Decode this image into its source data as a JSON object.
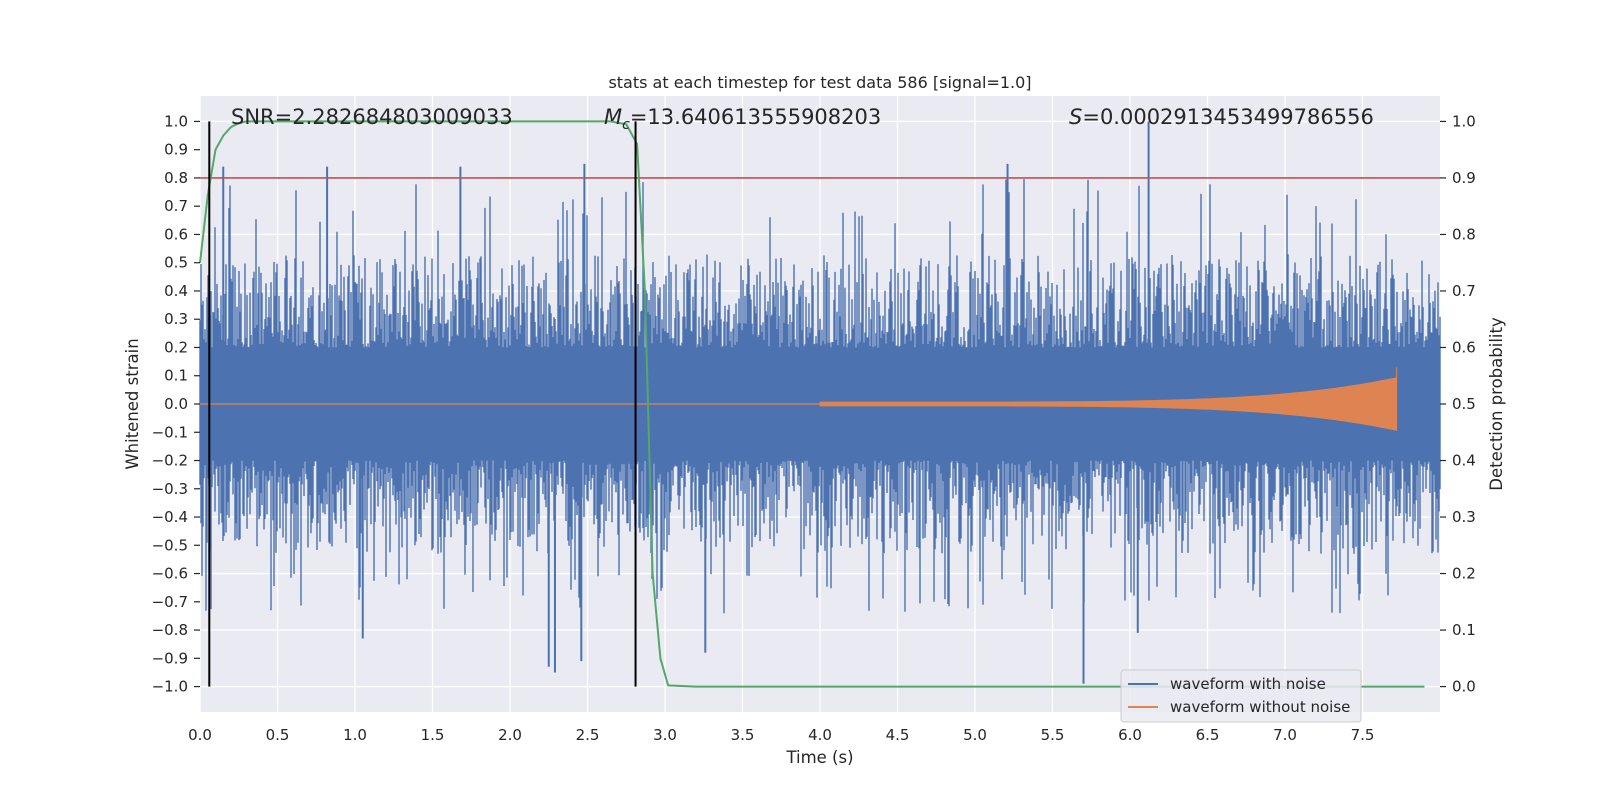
{
  "chart_data": {
    "type": "line",
    "title": "stats at each timestep for test data 586 [signal=1.0]",
    "xlabel": "Time (s)",
    "ylabel": "Whitened strain",
    "ylabel_right": "Detection probability",
    "xlim": [
      0.0,
      8.0
    ],
    "ylim": [
      -1.09,
      1.09
    ],
    "ylim_right": [
      -0.045,
      1.045
    ],
    "x_ticks": [
      0.0,
      0.5,
      1.0,
      1.5,
      2.0,
      2.5,
      3.0,
      3.5,
      4.0,
      4.5,
      5.0,
      5.5,
      6.0,
      6.5,
      7.0,
      7.5
    ],
    "x_tick_labels": [
      "0.0",
      "0.5",
      "1.0",
      "1.5",
      "2.0",
      "2.5",
      "3.0",
      "3.5",
      "4.0",
      "4.5",
      "5.0",
      "5.5",
      "6.0",
      "6.5",
      "7.0",
      "7.5"
    ],
    "y_ticks": [
      1.0,
      0.9,
      0.8,
      0.7,
      0.6,
      0.5,
      0.4,
      0.3,
      0.2,
      0.1,
      0.0,
      -0.1,
      -0.2,
      -0.3,
      -0.4,
      -0.5,
      -0.6,
      -0.7,
      -0.8,
      -0.9,
      -1.0
    ],
    "y_tick_labels": [
      "1.0",
      "0.9",
      "0.8",
      "0.7",
      "0.6",
      "0.5",
      "0.4",
      "0.3",
      "0.2",
      "0.1",
      "0.0",
      "−0.1",
      "−0.2",
      "−0.3",
      "−0.4",
      "−0.5",
      "−0.6",
      "−0.7",
      "−0.8",
      "−0.9",
      "−1.0"
    ],
    "y_right_ticks": [
      1.0,
      0.9,
      0.8,
      0.7,
      0.6,
      0.5,
      0.4,
      0.3,
      0.2,
      0.1,
      0.0
    ],
    "y_right_tick_labels": [
      "1.0",
      "0.9",
      "0.8",
      "0.7",
      "0.6",
      "0.5",
      "0.4",
      "0.3",
      "0.2",
      "0.1",
      "0.0"
    ],
    "series": [
      {
        "name": "waveform with noise",
        "color": "#4c72b0",
        "axis": "left",
        "description_values": {
          "band_abs": 0.2,
          "typical_peak_abs": 0.5,
          "max_spikes": [
            {
              "x": 0.15,
              "y": 0.84
            },
            {
              "x": 0.82,
              "y": 0.84
            },
            {
              "x": 1.68,
              "y": 0.84
            },
            {
              "x": 2.48,
              "y": 0.85
            },
            {
              "x": 5.21,
              "y": 0.85
            },
            {
              "x": 6.12,
              "y": 1.0
            },
            {
              "x": 2.25,
              "y": -0.93
            },
            {
              "x": 2.29,
              "y": -0.95
            },
            {
              "x": 2.46,
              "y": -0.91
            },
            {
              "x": 3.26,
              "y": -0.88
            },
            {
              "x": 5.7,
              "y": -0.99
            },
            {
              "x": 6.05,
              "y": -0.81
            },
            {
              "x": 1.05,
              "y": -0.83
            }
          ]
        }
      },
      {
        "name": "waveform without noise",
        "color": "#dd8452",
        "axis": "left",
        "chirp": {
          "start": 4.0,
          "end": 7.72,
          "peak_amplitude": 0.13
        }
      },
      {
        "name": "detection probability",
        "color": "#55a868",
        "axis": "right",
        "x": [
          0.0,
          0.05,
          0.1,
          0.15,
          0.2,
          0.25,
          0.3,
          0.4,
          0.6,
          0.8,
          1.0,
          2.0,
          2.5,
          2.65,
          2.75,
          2.82,
          2.87,
          2.92,
          2.97,
          3.02,
          3.2,
          4.0,
          5.0,
          6.0,
          7.0,
          7.9
        ],
        "y": [
          0.75,
          0.87,
          0.95,
          0.975,
          0.99,
          0.997,
          1.0,
          1.0,
          1.0,
          1.0,
          1.0,
          1.0,
          1.0,
          1.0,
          0.995,
          0.96,
          0.7,
          0.2,
          0.05,
          0.002,
          0.0,
          0.0,
          0.0,
          0.0,
          0.0,
          0.0
        ]
      }
    ],
    "threshold": {
      "axis": "right",
      "value": 0.9,
      "color": "#c44e52"
    },
    "vertical_lines": [
      {
        "x": 0.06,
        "ymin": -1.0,
        "ymax": 1.0,
        "color": "#000000"
      },
      {
        "x": 2.81,
        "ymin": -1.0,
        "ymax": 1.0,
        "color": "#000000"
      }
    ],
    "annotations": {
      "snr": "SNR=2.282684803009033",
      "mc_symbol": "M",
      "mc_subscript": "c",
      "mc_value": "=13.640613555908203",
      "s_symbol": "S",
      "s_value": "=0.0002913453499786556"
    },
    "legend": {
      "location": "lower-right",
      "entries": [
        {
          "label": "waveform with noise",
          "color": "#4c72b0"
        },
        {
          "label": "waveform without noise",
          "color": "#dd8452"
        }
      ]
    },
    "grid": true,
    "style": {
      "background": "#eaeaf2",
      "grid_color": "#ffffff"
    }
  }
}
